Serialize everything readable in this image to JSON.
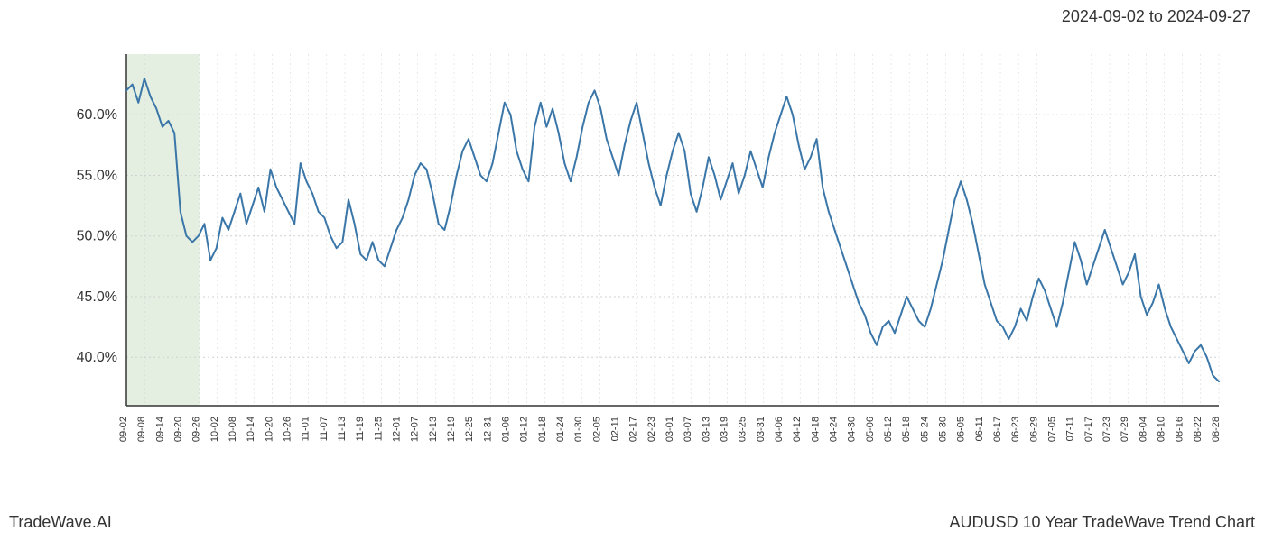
{
  "date_range": "2024-09-02 to 2024-09-27",
  "footer_left": "TradeWave.AI",
  "footer_right": "AUDUSD 10 Year TradeWave Trend Chart",
  "chart": {
    "type": "line",
    "line_color": "#3a76a8",
    "line_width": 2,
    "background_color": "#ffffff",
    "grid_color": "#d0d0d0",
    "axis_color": "#333333",
    "highlight_fill": "#d9e8d4",
    "highlight_start_index": 0,
    "highlight_end_index": 4,
    "ylim": [
      36,
      65
    ],
    "yticks": [
      40.0,
      45.0,
      50.0,
      55.0,
      60.0
    ],
    "ytick_labels": [
      "40.0%",
      "45.0%",
      "50.0%",
      "55.0%",
      "60.0%"
    ],
    "x_labels": [
      "09-02",
      "09-08",
      "09-14",
      "09-20",
      "09-26",
      "10-02",
      "10-08",
      "10-14",
      "10-20",
      "10-26",
      "11-01",
      "11-07",
      "11-13",
      "11-19",
      "11-25",
      "12-01",
      "12-07",
      "12-13",
      "12-19",
      "12-25",
      "12-31",
      "01-06",
      "01-12",
      "01-18",
      "01-24",
      "01-30",
      "02-05",
      "02-11",
      "02-17",
      "02-23",
      "03-01",
      "03-07",
      "03-13",
      "03-19",
      "03-25",
      "03-31",
      "04-06",
      "04-12",
      "04-18",
      "04-24",
      "04-30",
      "05-06",
      "05-12",
      "05-18",
      "05-24",
      "05-30",
      "06-05",
      "06-11",
      "06-17",
      "06-23",
      "06-29",
      "07-05",
      "07-11",
      "07-17",
      "07-23",
      "07-29",
      "08-04",
      "08-10",
      "08-16",
      "08-22",
      "08-28"
    ],
    "values": [
      62.0,
      62.5,
      61.0,
      63.0,
      61.5,
      60.5,
      59.0,
      59.5,
      58.5,
      52.0,
      50.0,
      49.5,
      50.0,
      51.0,
      48.0,
      49.0,
      51.5,
      50.5,
      52.0,
      53.5,
      51.0,
      52.5,
      54.0,
      52.0,
      55.5,
      54.0,
      53.0,
      52.0,
      51.0,
      56.0,
      54.5,
      53.5,
      52.0,
      51.5,
      50.0,
      49.0,
      49.5,
      53.0,
      51.0,
      48.5,
      48.0,
      49.5,
      48.0,
      47.5,
      49.0,
      50.5,
      51.5,
      53.0,
      55.0,
      56.0,
      55.5,
      53.5,
      51.0,
      50.5,
      52.5,
      55.0,
      57.0,
      58.0,
      56.5,
      55.0,
      54.5,
      56.0,
      58.5,
      61.0,
      60.0,
      57.0,
      55.5,
      54.5,
      59.0,
      61.0,
      59.0,
      60.5,
      58.5,
      56.0,
      54.5,
      56.5,
      59.0,
      61.0,
      62.0,
      60.5,
      58.0,
      56.5,
      55.0,
      57.5,
      59.5,
      61.0,
      58.5,
      56.0,
      54.0,
      52.5,
      55.0,
      57.0,
      58.5,
      57.0,
      53.5,
      52.0,
      54.0,
      56.5,
      55.0,
      53.0,
      54.5,
      56.0,
      53.5,
      55.0,
      57.0,
      55.5,
      54.0,
      56.5,
      58.5,
      60.0,
      61.5,
      60.0,
      57.5,
      55.5,
      56.5,
      58.0,
      54.0,
      52.0,
      50.5,
      49.0,
      47.5,
      46.0,
      44.5,
      43.5,
      42.0,
      41.0,
      42.5,
      43.0,
      42.0,
      43.5,
      45.0,
      44.0,
      43.0,
      42.5,
      44.0,
      46.0,
      48.0,
      50.5,
      53.0,
      54.5,
      53.0,
      51.0,
      48.5,
      46.0,
      44.5,
      43.0,
      42.5,
      41.5,
      42.5,
      44.0,
      43.0,
      45.0,
      46.5,
      45.5,
      44.0,
      42.5,
      44.5,
      47.0,
      49.5,
      48.0,
      46.0,
      47.5,
      49.0,
      50.5,
      49.0,
      47.5,
      46.0,
      47.0,
      48.5,
      45.0,
      43.5,
      44.5,
      46.0,
      44.0,
      42.5,
      41.5,
      40.5,
      39.5,
      40.5,
      41.0,
      40.0,
      38.5,
      38.0
    ]
  }
}
